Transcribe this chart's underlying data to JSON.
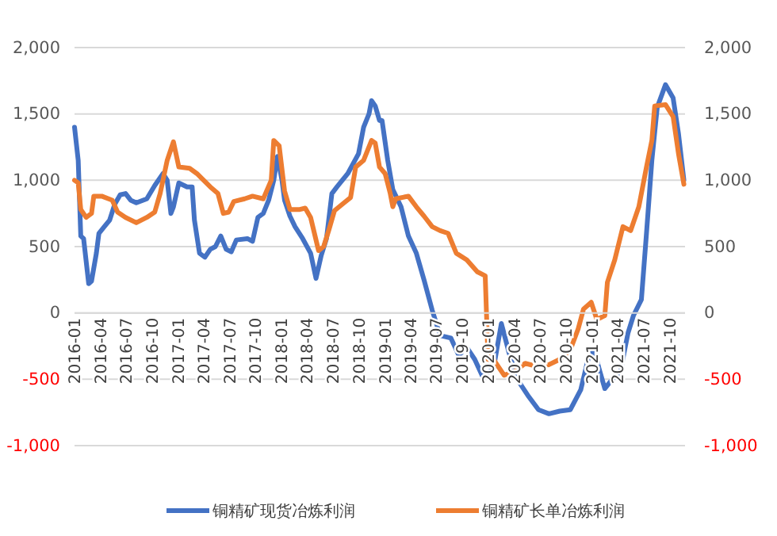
{
  "chart_data": {
    "type": "line",
    "xlim": [
      "2016-01-01",
      "2021-11-24"
    ],
    "ylim": [
      -1000,
      2000
    ],
    "yticks": [
      {
        "value": -1000,
        "label": "-1,000"
      },
      -500,
      0,
      500,
      {
        "value": 1000,
        "label": "1,000"
      },
      {
        "value": 1500,
        "label": "1,500"
      },
      {
        "value": 2000,
        "label": "2,000"
      }
    ],
    "y2lim": [
      -1000,
      2000
    ],
    "y2ticks": [
      {
        "value": -1000,
        "label": "-1,000"
      },
      -500,
      0,
      500,
      {
        "value": 1000,
        "label": "1,000"
      },
      {
        "value": 1500,
        "label": "1,500"
      },
      {
        "value": 2000,
        "label": "2,000"
      }
    ],
    "xticks": [
      "2016-01",
      "2016-04",
      "2016-07",
      "2016-10",
      "2017-01",
      "2017-04",
      "2017-07",
      "2017-10",
      "2018-01",
      "2018-04",
      "2018-07",
      "2018-10",
      "2019-01",
      "2019-04",
      "2019-07",
      "2019-10",
      "2020-01",
      "2020-04",
      "2020-07",
      "2020-10",
      "2021-01",
      "2021-04",
      "2021-07",
      "2021-10"
    ],
    "grid": "y",
    "legend": "bottom",
    "marker": "none",
    "line_style": "solid",
    "series": [
      {
        "name": "铜精矿现货冶炼利润",
        "color": "#4472c4",
        "x": [
          "2016-01-01",
          "2016-01-14",
          "2016-01-23",
          "2016-02-02",
          "2016-02-20",
          "2016-03-01",
          "2016-03-18",
          "2016-03-27",
          "2016-04-15",
          "2016-05-04",
          "2016-05-22",
          "2016-06-10",
          "2016-06-29",
          "2016-07-17",
          "2016-08-06",
          "2016-09-12",
          "2016-10-10",
          "2016-11-08",
          "2016-11-23",
          "2016-12-06",
          "2016-12-15",
          "2017-01-03",
          "2017-02-01",
          "2017-02-19",
          "2017-02-27",
          "2017-03-17",
          "2017-04-05",
          "2017-04-24",
          "2017-05-12",
          "2017-05-31",
          "2017-06-19",
          "2017-07-07",
          "2017-07-25",
          "2017-09-02",
          "2017-09-20",
          "2017-10-09",
          "2017-10-28",
          "2017-11-16",
          "2017-12-04",
          "2017-12-17",
          "2018-01-02",
          "2018-01-11",
          "2018-01-30",
          "2018-02-17",
          "2018-03-16",
          "2018-04-13",
          "2018-05-02",
          "2018-05-20",
          "2018-06-08",
          "2018-06-27",
          "2018-07-15",
          "2018-08-22",
          "2018-09-29",
          "2018-10-17",
          "2018-11-05",
          "2018-11-14",
          "2018-11-27",
          "2018-12-12",
          "2018-12-21",
          "2019-01-10",
          "2019-01-28",
          "2019-02-26",
          "2019-03-24",
          "2019-04-21",
          "2019-05-18",
          "2019-06-16",
          "2019-07-14",
          "2019-08-21",
          "2019-09-18",
          "2019-10-16",
          "2019-11-13",
          "2019-12-11",
          "2020-01-18",
          "2020-02-15",
          "2020-03-13",
          "2020-04-11",
          "2020-05-18",
          "2020-06-25",
          "2020-08-01",
          "2020-09-08",
          "2020-10-15",
          "2020-11-21",
          "2020-12-19",
          "2021-01-08",
          "2021-01-26",
          "2021-02-14",
          "2021-03-12",
          "2021-04-10",
          "2021-05-07",
          "2021-05-26",
          "2021-06-23",
          "2021-07-11",
          "2021-07-30",
          "2021-08-18",
          "2021-09-16",
          "2021-10-13",
          "2021-11-01",
          "2021-11-20"
        ],
        "values": [
          1400,
          1150,
          580,
          560,
          220,
          240,
          450,
          600,
          650,
          700,
          820,
          890,
          900,
          850,
          830,
          860,
          960,
          1050,
          1000,
          750,
          800,
          980,
          950,
          950,
          700,
          450,
          420,
          480,
          500,
          580,
          480,
          460,
          550,
          560,
          540,
          720,
          750,
          850,
          1000,
          1180,
          1000,
          850,
          730,
          650,
          560,
          450,
          260,
          430,
          560,
          900,
          950,
          1050,
          1200,
          1400,
          1500,
          1600,
          1560,
          1450,
          1450,
          1150,
          930,
          800,
          580,
          450,
          250,
          20,
          -170,
          -190,
          -320,
          -260,
          -350,
          -480,
          -420,
          -80,
          -300,
          -500,
          -620,
          -730,
          -760,
          -740,
          -730,
          -580,
          -330,
          -280,
          -430,
          -570,
          -500,
          -440,
          -150,
          -20,
          100,
          600,
          1150,
          1550,
          1720,
          1620,
          1350,
          1000
        ]
      },
      {
        "name": "铜精矿长单冶炼利润",
        "color": "#ed7d31",
        "x": [
          "2016-01-01",
          "2016-01-14",
          "2016-01-23",
          "2016-02-11",
          "2016-03-01",
          "2016-03-09",
          "2016-04-06",
          "2016-05-13",
          "2016-06-01",
          "2016-06-29",
          "2016-08-06",
          "2016-09-12",
          "2016-10-10",
          "2016-10-29",
          "2016-11-23",
          "2016-12-15",
          "2017-01-03",
          "2017-02-10",
          "2017-03-08",
          "2017-04-24",
          "2017-05-21",
          "2017-06-09",
          "2017-06-28",
          "2017-07-16",
          "2017-08-23",
          "2017-09-20",
          "2017-10-28",
          "2017-11-25",
          "2017-12-04",
          "2017-12-23",
          "2018-01-11",
          "2018-01-30",
          "2018-03-06",
          "2018-03-25",
          "2018-04-13",
          "2018-05-11",
          "2018-05-29",
          "2018-06-17",
          "2018-07-06",
          "2018-08-03",
          "2018-09-01",
          "2018-09-19",
          "2018-10-17",
          "2018-11-14",
          "2018-11-27",
          "2018-12-12",
          "2019-01-01",
          "2019-01-19",
          "2019-01-28",
          "2019-02-07",
          "2019-03-24",
          "2019-04-21",
          "2019-05-18",
          "2019-06-16",
          "2019-07-14",
          "2019-08-11",
          "2019-09-09",
          "2019-10-16",
          "2019-11-22",
          "2019-12-20",
          "2019-12-30",
          "2020-01-18",
          "2020-02-25",
          "2020-04-02",
          "2020-05-09",
          "2020-06-15",
          "2020-08-01",
          "2020-09-08",
          "2020-10-15",
          "2020-11-12",
          "2020-12-01",
          "2020-12-28",
          "2021-01-17",
          "2021-02-14",
          "2021-02-23",
          "2021-03-21",
          "2021-04-19",
          "2021-05-16",
          "2021-06-14",
          "2021-07-11",
          "2021-07-30",
          "2021-08-09",
          "2021-09-16",
          "2021-10-13",
          "2021-11-01",
          "2021-11-20"
        ],
        "values": [
          1000,
          980,
          780,
          720,
          750,
          880,
          880,
          850,
          760,
          720,
          680,
          720,
          760,
          900,
          1150,
          1290,
          1100,
          1090,
          1050,
          950,
          900,
          750,
          760,
          840,
          860,
          880,
          860,
          1000,
          1300,
          1260,
          920,
          780,
          780,
          790,
          720,
          470,
          500,
          630,
          770,
          820,
          870,
          1100,
          1150,
          1300,
          1280,
          1100,
          1050,
          900,
          800,
          860,
          880,
          800,
          730,
          650,
          620,
          600,
          450,
          400,
          310,
          280,
          -350,
          -350,
          -470,
          -440,
          -380,
          -400,
          -390,
          -350,
          -280,
          -120,
          30,
          80,
          -50,
          -20,
          230,
          400,
          650,
          620,
          800,
          1100,
          1300,
          1560,
          1570,
          1480,
          1200,
          970
        ]
      }
    ]
  }
}
